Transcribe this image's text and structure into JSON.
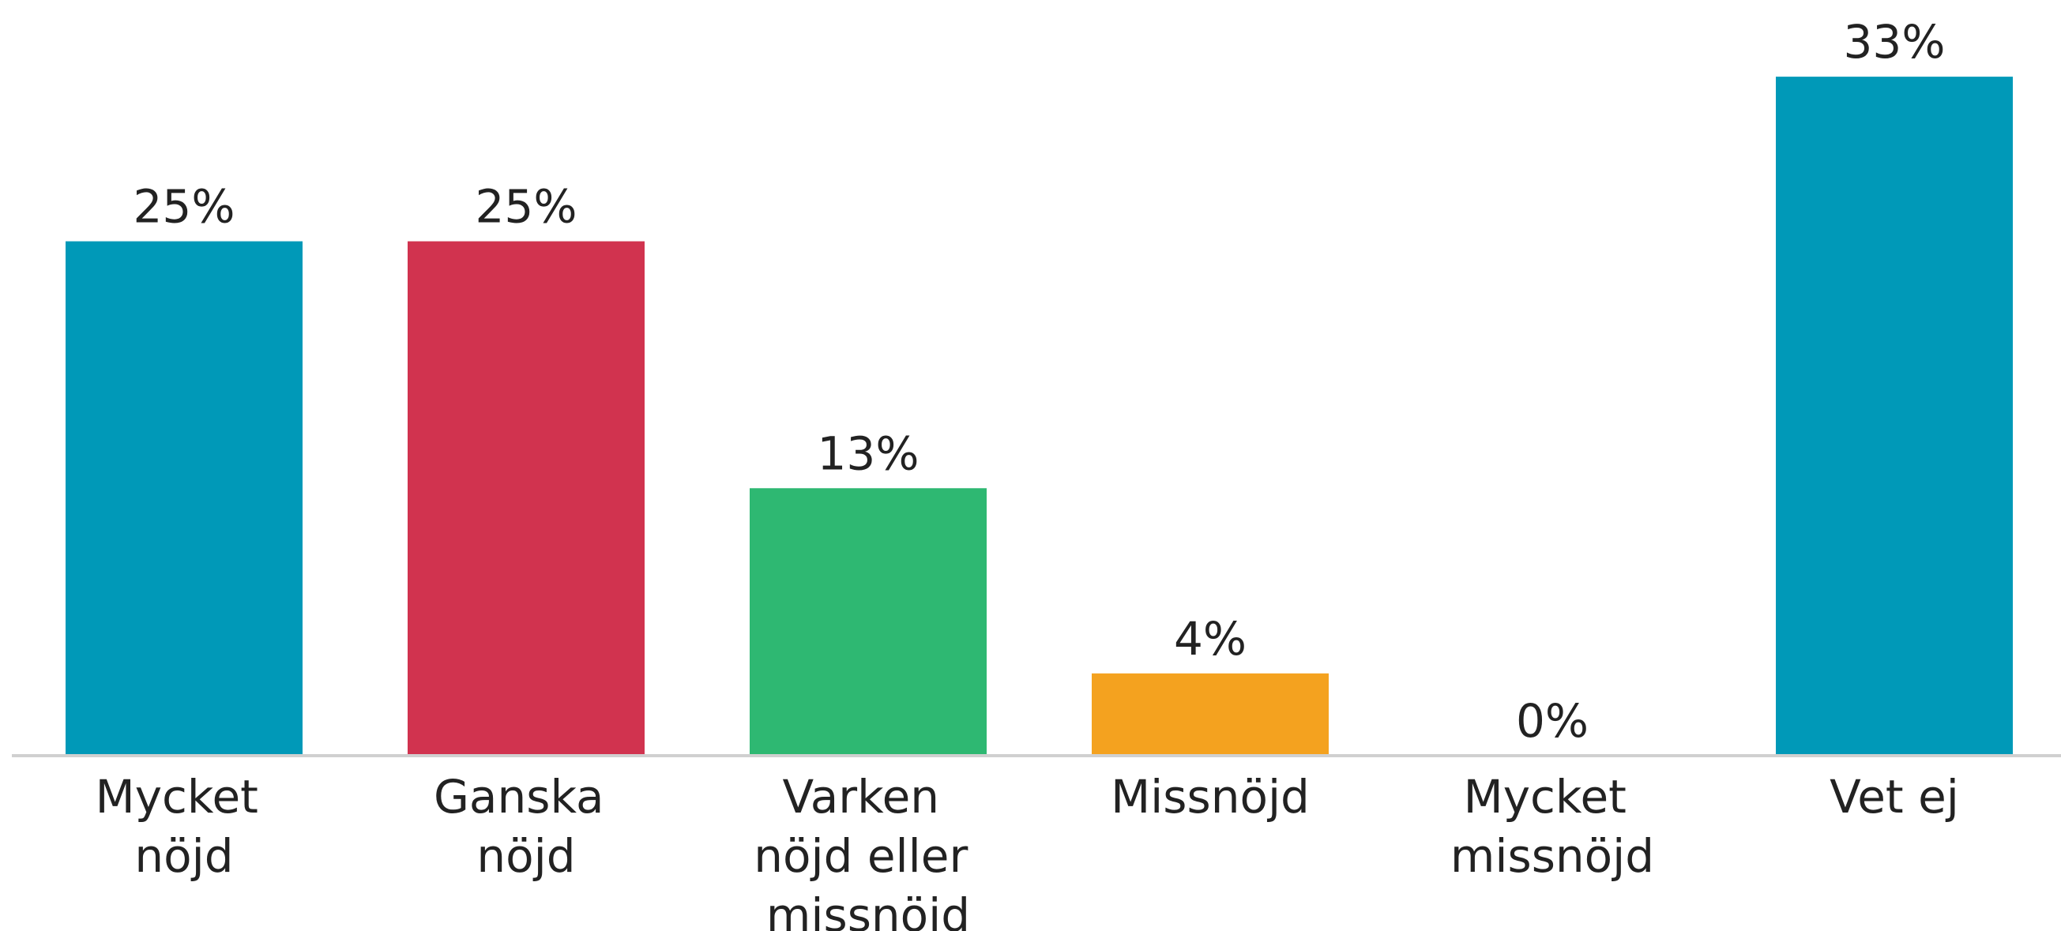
{
  "chart_data": {
    "type": "bar",
    "categories": [
      "Mycket nöjd",
      "Ganska nöjd",
      "Varken nöjd eller missnöjd",
      "Missnöjd",
      "Mycket missnöjd",
      "Vet ej"
    ],
    "values": [
      25,
      25,
      13,
      4,
      0,
      33
    ],
    "value_labels": [
      "25%",
      "25%",
      "13%",
      "4%",
      "0%",
      "33%"
    ],
    "colors": [
      "#0099b8",
      "#d1334f",
      "#2eb872",
      "#f4a21f",
      "#0099b8",
      "#0099b8"
    ],
    "ylim": [
      0,
      35
    ]
  }
}
